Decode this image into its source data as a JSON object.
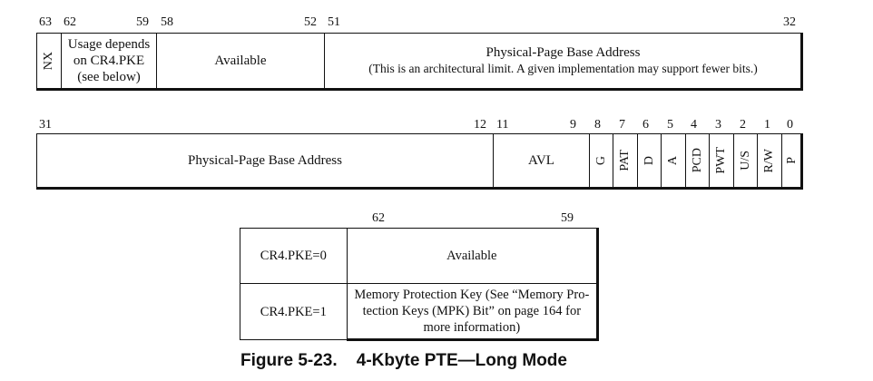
{
  "register_upper": {
    "bit_labels": [
      "63",
      "62",
      "59",
      "58",
      "52",
      "51",
      "32"
    ],
    "fields": {
      "nx": "NX",
      "usage": [
        "Usage depends",
        "on CR4.PKE",
        "(see below)"
      ],
      "available": "Available",
      "ppba_title": "Physical-Page Base Address",
      "ppba_note": "(This is an architectural limit. A given implementation may support fewer bits.)"
    }
  },
  "register_lower": {
    "bit_labels": [
      "31",
      "12",
      "11",
      "9",
      "8",
      "7",
      "6",
      "5",
      "4",
      "3",
      "2",
      "1",
      "0"
    ],
    "fields": {
      "ppba": "Physical-Page Base Address",
      "avl": "AVL",
      "g": "G",
      "pat": "PAT",
      "d": "D",
      "a": "A",
      "pcd": "PCD",
      "pwt": "PWT",
      "us": "U/S",
      "rw": "R/W",
      "p": "P"
    }
  },
  "pke_table": {
    "bit_labels": [
      "62",
      "59"
    ],
    "rows": [
      {
        "condition": "CR4.PKE=0",
        "meaning": "Available"
      },
      {
        "condition": "CR4.PKE=1",
        "meaning": [
          "Memory Protection Key (See “Memory Pro-",
          "tection Keys (MPK) Bit” on page 164 for",
          "more information)"
        ]
      }
    ]
  },
  "caption": "Figure 5-23.    4-Kbyte PTE—Long Mode"
}
